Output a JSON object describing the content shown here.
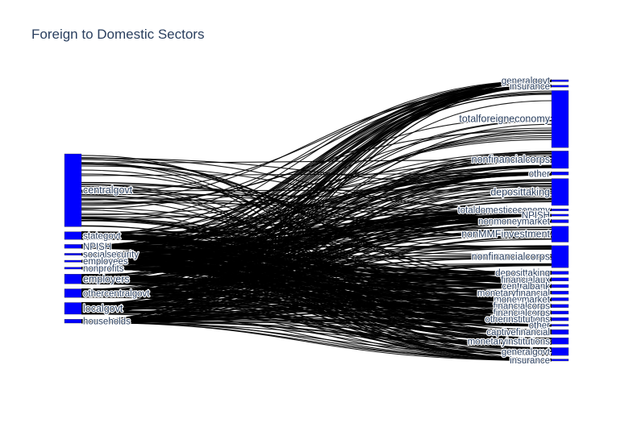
{
  "title": "Foreign to Domestic Sectors",
  "colors": {
    "node": "#0000ff",
    "link": "#000000",
    "link_fill": "#ffffff",
    "text": "#2a3f5f"
  },
  "sources": [
    {
      "label": "centralgovt",
      "size": 75
    },
    {
      "label": "stategovt",
      "size": 8
    },
    {
      "label": "NPISH",
      "size": 4
    },
    {
      "label": "socialsecurity",
      "size": 2
    },
    {
      "label": "employees",
      "size": 2
    },
    {
      "label": "nonprofits",
      "size": 2
    },
    {
      "label": "employers",
      "size": 10
    },
    {
      "label": "othercentralgovt",
      "size": 9
    },
    {
      "label": "localgovt",
      "size": 12
    },
    {
      "label": "households",
      "size": 4
    }
  ],
  "targets": [
    {
      "label": "generalgovt",
      "size": 1
    },
    {
      "label": "insurance",
      "size": 1
    },
    {
      "label": "totalforeigneconomy",
      "size": 36
    },
    {
      "label": "nonfinancialcorps",
      "size": 11
    },
    {
      "label": "other",
      "size": 2
    },
    {
      "label": "deposittaking",
      "size": 17
    },
    {
      "label": "totaldomesticeconomy",
      "size": 1
    },
    {
      "label": "NPISH",
      "size": 1
    },
    {
      "label": "nonmoneymarket",
      "size": 2
    },
    {
      "label": "nonMMFinvestment",
      "size": 10
    },
    {
      "label": "nonfinancialcorps",
      "size": 14
    },
    {
      "label": "deposittaking",
      "size": 2
    },
    {
      "label": "financialaux",
      "size": 2
    },
    {
      "label": "centralbank",
      "size": 2
    },
    {
      "label": "monetaryfinancial",
      "size": 2
    },
    {
      "label": "moneymarket",
      "size": 2
    },
    {
      "label": "financialcorps",
      "size": 2
    },
    {
      "label": "financialcorps",
      "size": 2
    },
    {
      "label": "otherinstitutions",
      "size": 2
    },
    {
      "label": "other",
      "size": 1
    },
    {
      "label": "captivefinancial",
      "size": 3
    },
    {
      "label": "monetaryinstitutions",
      "size": 4
    },
    {
      "label": "generalgovt",
      "size": 5
    },
    {
      "label": "insurance",
      "size": 1
    }
  ]
}
